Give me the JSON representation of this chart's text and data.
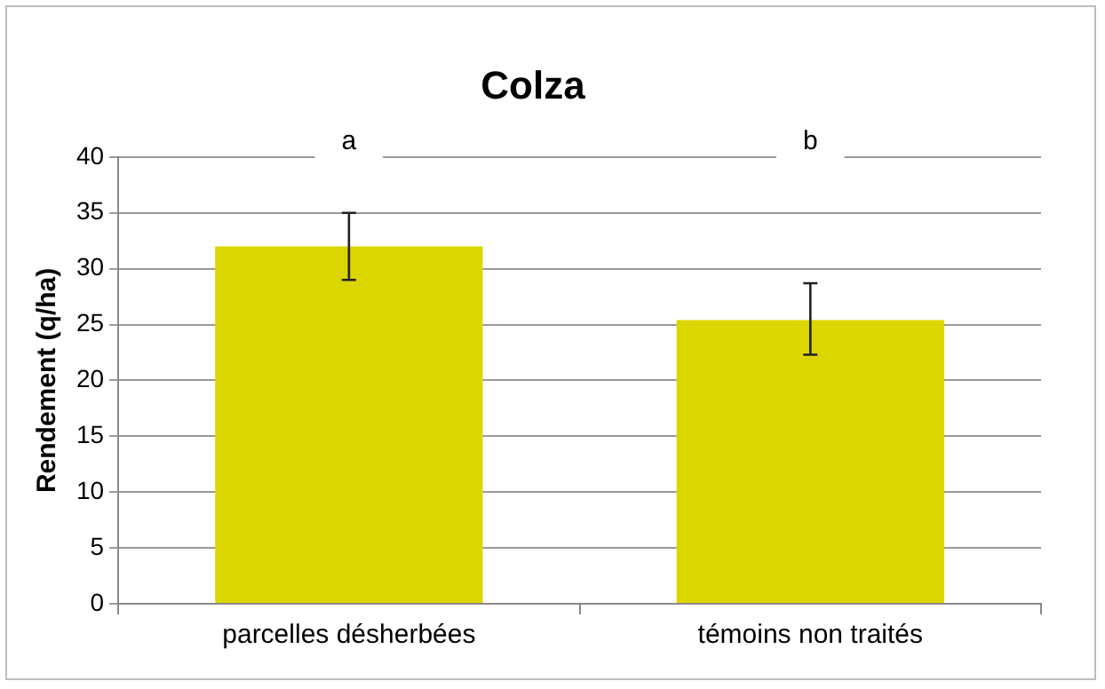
{
  "chart_data": {
    "type": "bar",
    "title": "Colza",
    "ylabel": "Rendement (q/ha)",
    "categories": [
      "parcelles désherbées",
      "témoins non traités"
    ],
    "values": [
      32,
      25.4
    ],
    "color": "#dcd600",
    "errors": [
      3,
      [
        22.3,
        28.7
      ]
    ],
    "ylim": [
      0,
      40
    ],
    "yticks": [
      0,
      5,
      10,
      15,
      20,
      25,
      30,
      35,
      40
    ],
    "grid": "y",
    "legend": false,
    "annotations": [
      "a",
      "b"
    ]
  }
}
